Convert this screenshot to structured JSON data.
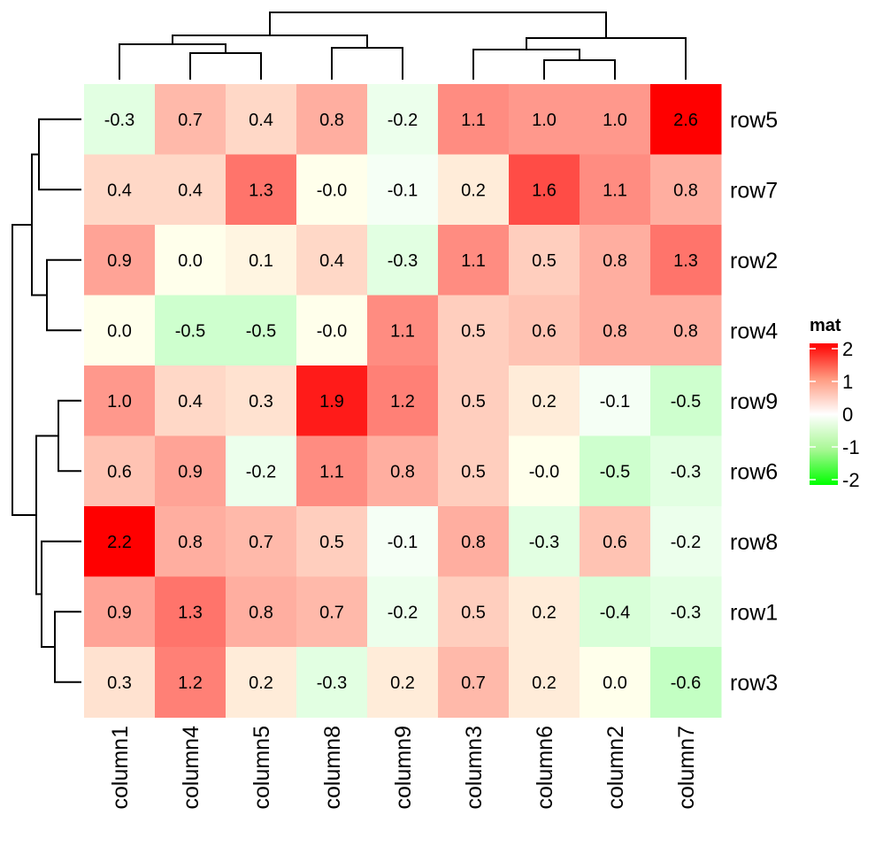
{
  "chart_data": {
    "type": "heatmap",
    "title": "",
    "columns": [
      "column1",
      "column4",
      "column5",
      "column8",
      "column9",
      "column3",
      "column6",
      "column2",
      "column7"
    ],
    "rows": [
      "row5",
      "row7",
      "row2",
      "row4",
      "row9",
      "row6",
      "row8",
      "row1",
      "row3"
    ],
    "values": [
      [
        -0.3,
        0.7,
        0.4,
        0.8,
        -0.2,
        1.1,
        1.0,
        1.0,
        2.6
      ],
      [
        0.4,
        0.4,
        1.3,
        -0.0,
        -0.1,
        0.2,
        1.6,
        1.1,
        0.8
      ],
      [
        0.9,
        0.0,
        0.1,
        0.4,
        -0.3,
        1.1,
        0.5,
        0.8,
        1.3
      ],
      [
        0.0,
        -0.5,
        -0.5,
        -0.0,
        1.1,
        0.5,
        0.6,
        0.8,
        0.8
      ],
      [
        1.0,
        0.4,
        0.3,
        1.9,
        1.2,
        0.5,
        0.2,
        -0.1,
        -0.5
      ],
      [
        0.6,
        0.9,
        -0.2,
        1.1,
        0.8,
        0.5,
        -0.0,
        -0.5,
        -0.3
      ],
      [
        2.2,
        0.8,
        0.7,
        0.5,
        -0.1,
        0.8,
        -0.3,
        0.6,
        -0.2
      ],
      [
        0.9,
        1.3,
        0.8,
        0.7,
        -0.2,
        0.5,
        0.2,
        -0.4,
        -0.3
      ],
      [
        0.3,
        1.2,
        0.2,
        -0.3,
        0.2,
        0.7,
        0.2,
        0.0,
        -0.6
      ]
    ],
    "value_labels": [
      [
        "-0.3",
        "0.7",
        "0.4",
        "0.8",
        "-0.2",
        "1.1",
        "1.0",
        "1.0",
        "2.6"
      ],
      [
        "0.4",
        "0.4",
        "1.3",
        "-0.0",
        "-0.1",
        "0.2",
        "1.6",
        "1.1",
        "0.8"
      ],
      [
        "0.9",
        "0.0",
        "0.1",
        "0.4",
        "-0.3",
        "1.1",
        "0.5",
        "0.8",
        "1.3"
      ],
      [
        "0.0",
        "-0.5",
        "-0.5",
        "-0.0",
        "1.1",
        "0.5",
        "0.6",
        "0.8",
        "0.8"
      ],
      [
        "1.0",
        "0.4",
        "0.3",
        "1.9",
        "1.2",
        "0.5",
        "0.2",
        "-0.1",
        "-0.5"
      ],
      [
        "0.6",
        "0.9",
        "-0.2",
        "1.1",
        "0.8",
        "0.5",
        "-0.0",
        "-0.5",
        "-0.3"
      ],
      [
        "2.2",
        "0.8",
        "0.7",
        "0.5",
        "-0.1",
        "0.8",
        "-0.3",
        "0.6",
        "-0.2"
      ],
      [
        "0.9",
        "1.3",
        "0.8",
        "0.7",
        "-0.2",
        "0.5",
        "0.2",
        "-0.4",
        "-0.3"
      ],
      [
        "0.3",
        "1.2",
        "0.2",
        "-0.3",
        "0.2",
        "0.7",
        "0.2",
        "0.0",
        "-0.6"
      ]
    ],
    "color_scale": {
      "min": -2,
      "mid": 0,
      "max": 2,
      "low_color": "#00FF00",
      "mid_color": "#FFFFFF",
      "high_color": "#FF0000"
    },
    "legend": {
      "title": "mat",
      "ticks": [
        "2",
        "1",
        "0",
        "-1",
        "-2"
      ],
      "tick_values": [
        2,
        1,
        0,
        -1,
        -2
      ],
      "placement": "right"
    },
    "column_dendrogram": true,
    "row_dendrogram": true
  }
}
